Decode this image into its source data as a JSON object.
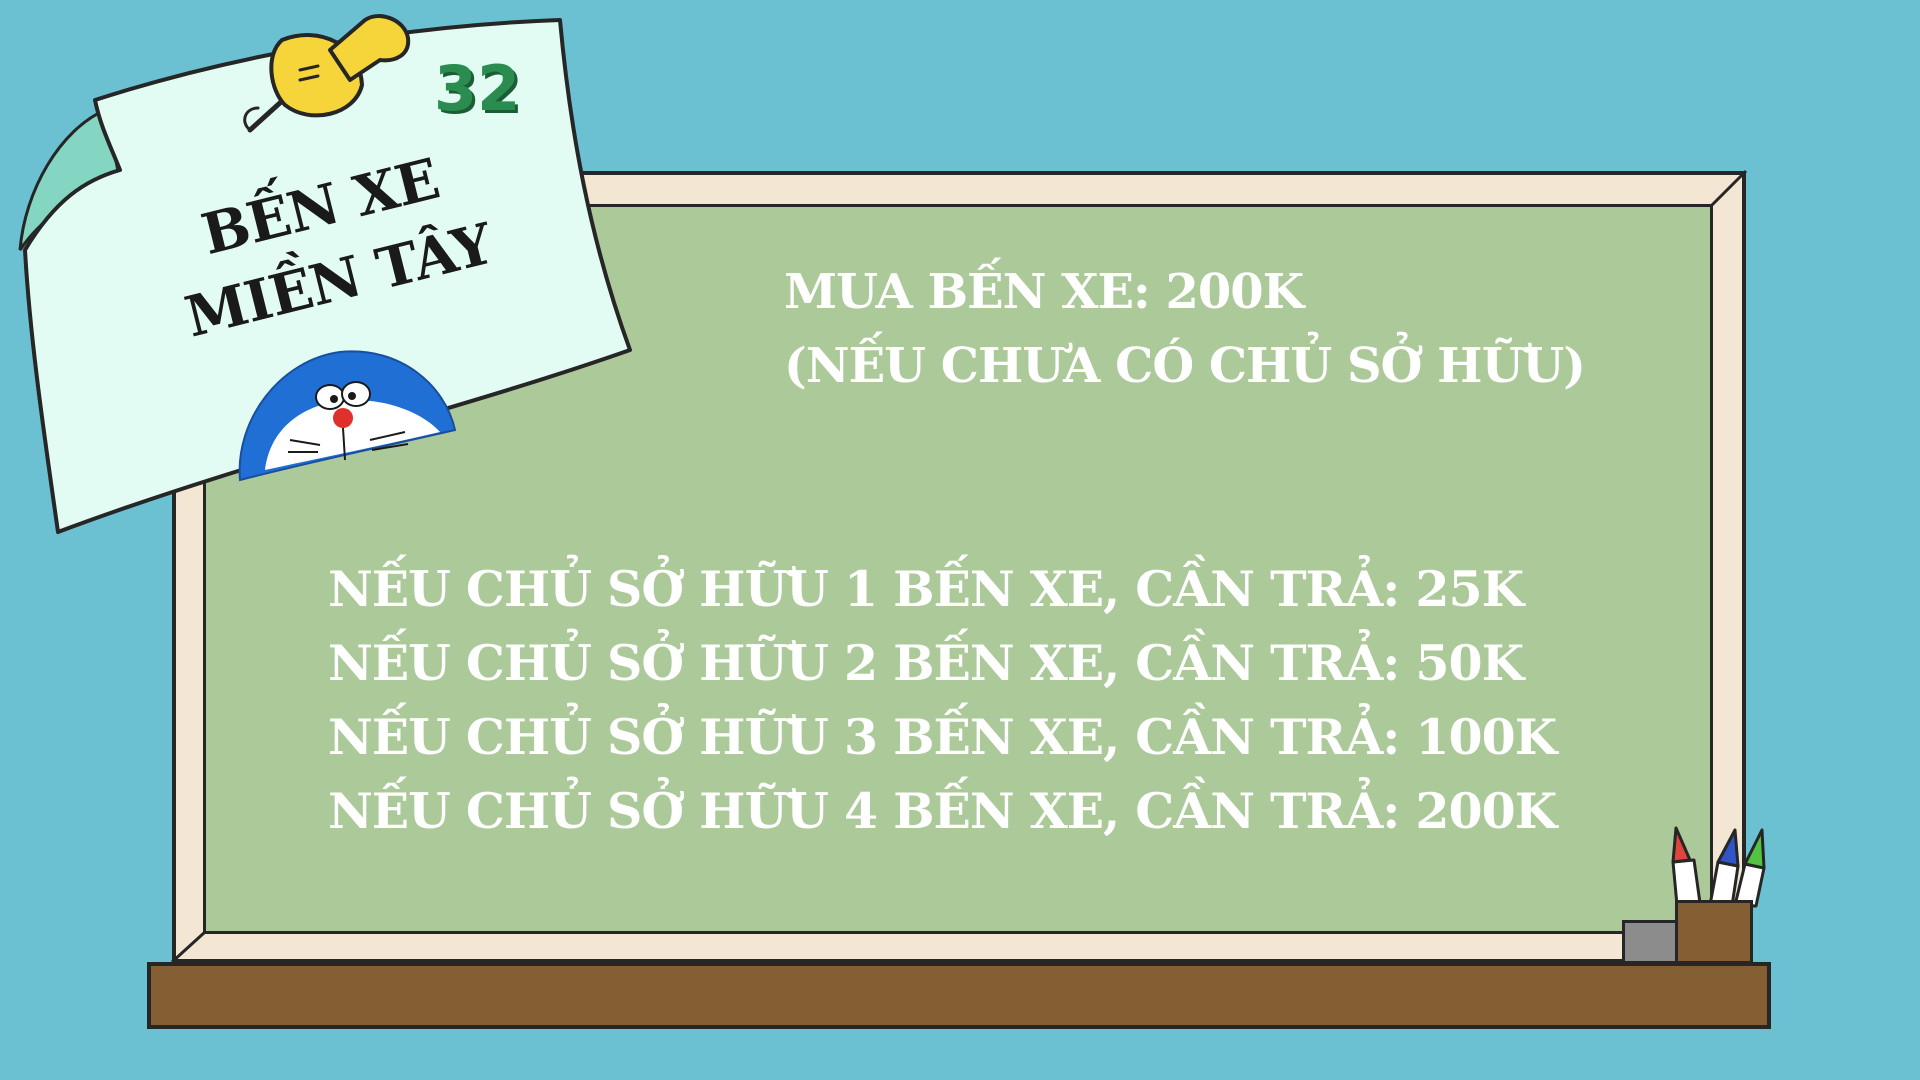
{
  "card": {
    "number": "32",
    "title_lines": [
      "BẾN XE",
      "MIỀN TÂY"
    ]
  },
  "buy": {
    "lines": [
      "MUA BẾN XE: 200K",
      "(NẾU CHƯA CÓ CHỦ SỞ HỮU)"
    ]
  },
  "rent": {
    "lines": [
      "NẾU CHỦ SỞ HỮU 1 BẾN XE, CẦN TRẢ: 25K",
      "NẾU CHỦ SỞ HỮU 2 BẾN XE, CẦN TRẢ: 50K",
      "NẾU CHỦ SỞ HỮU 3 BẾN XE, CẦN TRẢ: 100K",
      "NẾU CHỦ SỞ HỮU 4 BẾN XE, CẦN TRẢ: 200K"
    ]
  },
  "icons": [
    "pushpin-icon",
    "doraemon-icon",
    "markers-icon",
    "eraser-icon"
  ],
  "colors": {
    "background": "#6bc1d2",
    "chalkboard": "#acc999",
    "frame": "#f3e6d2",
    "tray": "#835f33",
    "note": "#e2fbf3",
    "number": "#2a8c4e",
    "pin": "#f6d53a"
  }
}
